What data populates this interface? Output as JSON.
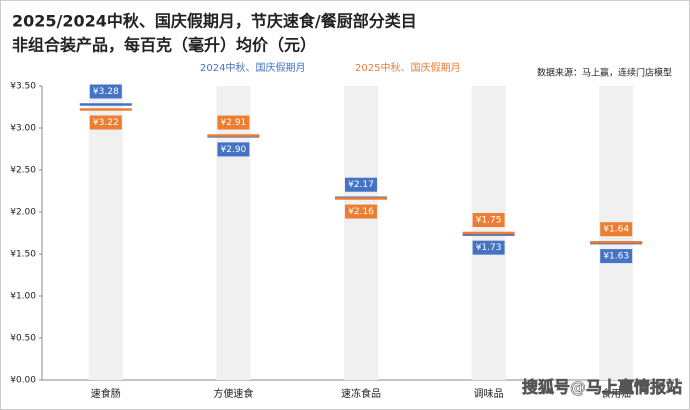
{
  "chart_data": {
    "type": "bar-marker",
    "title": "2025/2024中秋、国庆假期月，节庆速食/餐厨部分类目",
    "subtitle": "非组合装产品，每百克（毫升）均价（元）",
    "source": "数据来源：马上赢，连续门店模型",
    "watermark": "搜狐号@马上赢情报站",
    "categories": [
      "速食肠",
      "方便速食",
      "速冻食品",
      "调味品",
      "食用油"
    ],
    "series": [
      {
        "name": "2024中秋、国庆假期月",
        "color": "#4472c4",
        "values": [
          3.28,
          2.9,
          2.17,
          1.73,
          1.63
        ],
        "value_labels": [
          "¥3.28",
          "¥2.90",
          "¥2.17",
          "¥1.73",
          "¥1.63"
        ]
      },
      {
        "name": "2025中秋、国庆假期月",
        "color": "#ed7d31",
        "values": [
          3.22,
          2.91,
          2.16,
          1.75,
          1.64
        ],
        "value_labels": [
          "¥3.22",
          "¥2.91",
          "¥2.16",
          "¥1.75",
          "¥1.64"
        ]
      }
    ],
    "ylim": [
      0,
      3.5
    ],
    "yticks": [
      {
        "value": 0,
        "label": "¥0.00"
      },
      {
        "value": 0.5,
        "label": "¥0.50"
      },
      {
        "value": 1,
        "label": "¥1.00"
      },
      {
        "value": 1.5,
        "label": "¥1.50"
      },
      {
        "value": 2,
        "label": "¥2.00"
      },
      {
        "value": 2.5,
        "label": "¥2.50"
      },
      {
        "value": 3,
        "label": "¥3.00"
      },
      {
        "value": 3.5,
        "label": "¥3.50"
      }
    ],
    "grid": false
  }
}
